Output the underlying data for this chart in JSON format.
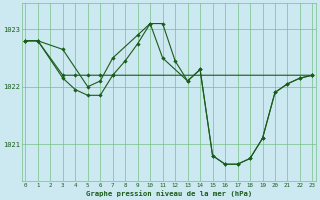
{
  "line1_x": [
    0,
    1,
    3,
    4,
    5,
    6,
    7,
    23
  ],
  "line1_y": [
    1022.8,
    1022.8,
    1022.2,
    1022.2,
    1022.2,
    1022.2,
    1022.2,
    1022.2
  ],
  "line2_x": [
    0,
    1,
    3,
    5,
    6,
    7,
    9,
    10,
    11,
    13,
    14,
    15,
    16,
    17,
    18,
    19,
    20,
    21,
    22,
    23
  ],
  "line2_y": [
    1022.8,
    1022.8,
    1022.65,
    1022.0,
    1022.1,
    1022.5,
    1022.9,
    1023.1,
    1022.5,
    1022.1,
    1022.3,
    1020.8,
    1020.65,
    1020.65,
    1020.75,
    1021.1,
    1021.9,
    1022.05,
    1022.15,
    1022.2
  ],
  "line3_x": [
    0,
    1,
    3,
    4,
    5,
    6,
    7,
    8,
    9,
    10,
    11,
    12,
    13,
    14,
    15,
    16,
    17,
    18,
    19,
    20,
    21,
    22,
    23
  ],
  "line3_y": [
    1022.8,
    1022.8,
    1022.15,
    1021.95,
    1021.85,
    1021.85,
    1022.2,
    1022.45,
    1022.75,
    1023.1,
    1023.1,
    1022.45,
    1022.1,
    1022.3,
    1020.8,
    1020.65,
    1020.65,
    1020.75,
    1021.1,
    1021.9,
    1022.05,
    1022.15,
    1022.2
  ],
  "color": "#1a5c1a",
  "bg_color": "#cce8f0",
  "grid_color": "#7abf8a",
  "xlabel": "Graphe pression niveau de la mer (hPa)",
  "yticks": [
    1021,
    1022,
    1023
  ],
  "xticks": [
    0,
    1,
    2,
    3,
    4,
    5,
    6,
    7,
    8,
    9,
    10,
    11,
    12,
    13,
    14,
    15,
    16,
    17,
    18,
    19,
    20,
    21,
    22,
    23
  ],
  "xlim": [
    -0.3,
    23.3
  ],
  "ylim": [
    1020.35,
    1023.45
  ]
}
